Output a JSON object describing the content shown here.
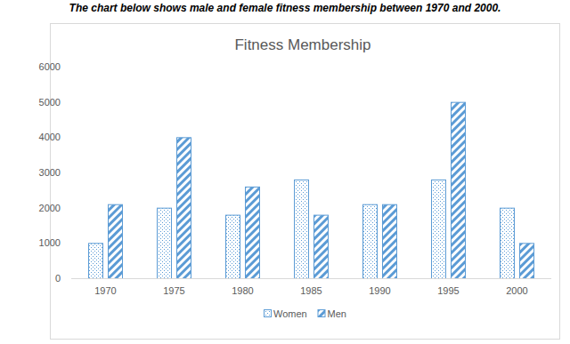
{
  "chart_data": {
    "type": "bar",
    "subtitle": "The chart below shows male and female fitness membership between 1970 and 2000.",
    "title": "Fitness Membership",
    "categories": [
      "1970",
      "1975",
      "1980",
      "1985",
      "1990",
      "1995",
      "2000"
    ],
    "series": [
      {
        "name": "Women",
        "color": "#5b9bd5",
        "values": [
          1000,
          2000,
          1800,
          2800,
          2100,
          2800,
          2000
        ]
      },
      {
        "name": "Men",
        "color": "#5b9bd5",
        "values": [
          2100,
          4000,
          2600,
          1800,
          2100,
          5000,
          1000
        ]
      }
    ],
    "ylim": [
      0,
      6000
    ],
    "yticks": [
      0,
      1000,
      2000,
      3000,
      4000,
      5000,
      6000
    ],
    "grid": false,
    "legend": "bottom"
  }
}
